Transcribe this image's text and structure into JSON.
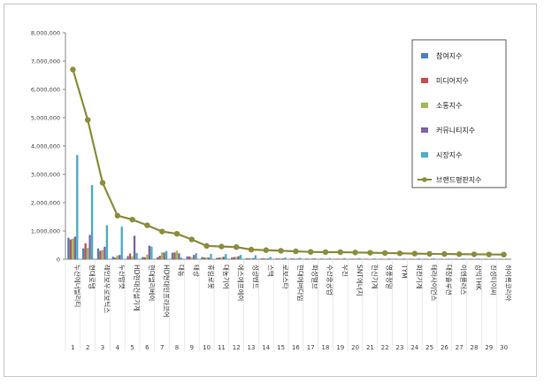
{
  "chart_data": {
    "type": "bar",
    "title": "",
    "xlabel": "",
    "ylabel": "",
    "ylim": [
      0,
      8000000
    ],
    "yticks": [
      "0",
      "1,000,000",
      "2,000,000",
      "3,000,000",
      "4,000,000",
      "5,000,000",
      "6,000,000",
      "7,000,000",
      "8,000,000"
    ],
    "legend_position": "top-right",
    "grid": false,
    "categories": [
      "두산에너빌리티",
      "현대로템",
      "레인보우로보틱스",
      "두산밥캣",
      "HD현대건설기계",
      "현대엘리베이",
      "HD현대인프라코어",
      "대동",
      "태광",
      "휴림로봇",
      "대동기어",
      "에스에프에이",
      "성광벤드",
      "스맥",
      "로보스타",
      "현대에버다임",
      "화성밸브",
      "수산중공업",
      "우진",
      "SNT에너지",
      "한신기계",
      "영풍정밀",
      "TYM",
      "화천기계",
      "테라사이언스",
      "대창솔루션",
      "이엔플러스",
      "삼익THK",
      "진성티이씨",
      "하이록코리아"
    ],
    "ranks": [
      "1",
      "2",
      "3",
      "4",
      "5",
      "6",
      "7",
      "8",
      "9",
      "10",
      "11",
      "12",
      "13",
      "14",
      "15",
      "16",
      "17",
      "18",
      "19",
      "20",
      "21",
      "22",
      "23",
      "24",
      "25",
      "26",
      "27",
      "28",
      "29",
      "30"
    ],
    "series": [
      {
        "name": "참여지수",
        "color": "#4f81bd",
        "kind": "bar",
        "values": [
          760000,
          380000,
          380000,
          90000,
          110000,
          80000,
          70000,
          230000,
          100000,
          80000,
          50000,
          60000,
          40000,
          30000,
          30000,
          30000,
          25000,
          25000,
          20000,
          20000,
          20000,
          20000,
          18000,
          18000,
          18000,
          15000,
          15000,
          15000,
          12000,
          12000
        ]
      },
      {
        "name": "미디어지수",
        "color": "#c0504d",
        "kind": "bar",
        "values": [
          700000,
          560000,
          300000,
          60000,
          200000,
          70000,
          120000,
          240000,
          100000,
          60000,
          60000,
          80000,
          30000,
          30000,
          25000,
          25000,
          20000,
          20000,
          20000,
          20000,
          15000,
          15000,
          15000,
          15000,
          15000,
          12000,
          12000,
          12000,
          10000,
          10000
        ]
      },
      {
        "name": "소통지수",
        "color": "#9bbb59",
        "kind": "bar",
        "values": [
          730000,
          400000,
          330000,
          130000,
          100000,
          160000,
          240000,
          300000,
          60000,
          70000,
          70000,
          80000,
          40000,
          30000,
          30000,
          25000,
          20000,
          20000,
          20000,
          20000,
          15000,
          15000,
          15000,
          15000,
          15000,
          12000,
          12000,
          12000,
          10000,
          10000
        ]
      },
      {
        "name": "커뮤니티지수",
        "color": "#8064a2",
        "kind": "bar",
        "values": [
          800000,
          860000,
          440000,
          150000,
          830000,
          480000,
          240000,
          210000,
          150000,
          60000,
          90000,
          110000,
          40000,
          30000,
          30000,
          25000,
          25000,
          20000,
          20000,
          20000,
          15000,
          15000,
          15000,
          15000,
          15000,
          12000,
          12000,
          12000,
          10000,
          10000
        ]
      },
      {
        "name": "시장지수",
        "color": "#4bacc6",
        "kind": "bar",
        "values": [
          3680000,
          2620000,
          1200000,
          1150000,
          220000,
          450000,
          290000,
          60000,
          210000,
          190000,
          180000,
          150000,
          140000,
          80000,
          60000,
          50000,
          40000,
          40000,
          40000,
          40000,
          30000,
          30000,
          30000,
          30000,
          30000,
          25000,
          25000,
          25000,
          20000,
          20000
        ]
      },
      {
        "name": "브랜드평판지수",
        "color": "#8c8c3c",
        "kind": "line",
        "values": [
          6700000,
          4920000,
          2700000,
          1540000,
          1400000,
          1200000,
          980000,
          900000,
          700000,
          470000,
          450000,
          430000,
          340000,
          320000,
          300000,
          280000,
          260000,
          250000,
          250000,
          240000,
          230000,
          220000,
          210000,
          200000,
          190000,
          185000,
          180000,
          175000,
          170000,
          165000
        ]
      }
    ]
  }
}
